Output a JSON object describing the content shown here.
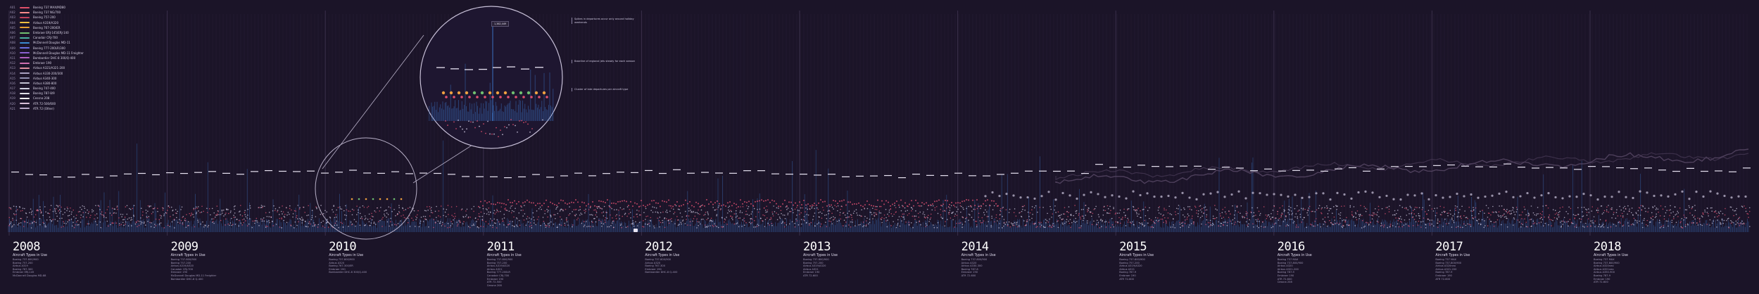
{
  "legend": [
    {
      "code": "A01",
      "label": "Boeing 737 MAX/MD80",
      "color": "#e0506a"
    },
    {
      "code": "A02",
      "label": "Boeing 737 NG/700",
      "color": "#ff8a8a"
    },
    {
      "code": "A03",
      "label": "Boeing 757-200",
      "color": "#c0405a"
    },
    {
      "code": "A04",
      "label": "Airbus A319/A320",
      "color": "#f0c040"
    },
    {
      "code": "A05",
      "label": "Boeing 767-200/ER",
      "color": "#e8a030"
    },
    {
      "code": "A06",
      "label": "Embraer ERJ-145/ERJ-140",
      "color": "#70c070"
    },
    {
      "code": "A07",
      "label": "Canadair CRJ-700",
      "color": "#4ab0a0"
    },
    {
      "code": "A08",
      "label": "McDonnell Douglas MD-11",
      "color": "#3a8ad0"
    },
    {
      "code": "A09",
      "label": "Boeing 777-200LR/300",
      "color": "#6a70e0"
    },
    {
      "code": "A10",
      "label": "McDonnell Douglas MD-11 Freighter",
      "color": "#8a60d0"
    },
    {
      "code": "A11",
      "label": "Bombardier DHC-8 300/Q-400",
      "color": "#b060c0"
    },
    {
      "code": "A12",
      "label": "Embraer 190",
      "color": "#d070b0"
    },
    {
      "code": "A13",
      "label": "Airbus A321/A321-200",
      "color": "#e090a0"
    },
    {
      "code": "A14",
      "label": "Airbus A330-200/300",
      "color": "#a8a0c0"
    },
    {
      "code": "A15",
      "label": "Airbus A340-300",
      "color": "#9090b0"
    },
    {
      "code": "A16",
      "label": "Airbus A380-800",
      "color": "#c0c0d0"
    },
    {
      "code": "A17",
      "label": "Boeing 747-400",
      "color": "#d0d0e0"
    },
    {
      "code": "A18",
      "label": "Boeing 787-8/9",
      "color": "#e0e0e8"
    },
    {
      "code": "A19",
      "label": "Cessna 208",
      "color": "#f0f0f0"
    },
    {
      "code": "A20",
      "label": "ATR 72-500/600",
      "color": "#d8c0d8"
    },
    {
      "code": "A21",
      "label": "ATR 72 (Other)",
      "color": "#b8a8c8"
    }
  ],
  "annotations": [
    "Spikes in departures occur only around holiday weekends",
    "Baseline of regional jets steady for each season",
    "Cluster of late departures per aircraft type"
  ],
  "callout_value": "1,362,449",
  "chart_data": {
    "type": "scatter",
    "title": "",
    "xlabel": "",
    "ylabel": "",
    "x_range": [
      2008,
      2019
    ],
    "years": [
      "2008",
      "2009",
      "2010",
      "2011",
      "2012",
      "2013",
      "2014",
      "2015",
      "2016",
      "2017",
      "2018"
    ],
    "year_subtitle": "Aircraft Types in Use",
    "year_items": {
      "2008": [
        "Boeing 737-800/900",
        "Boeing 757-200",
        "Airbus A319",
        "Boeing 767-300",
        "Embraer ERJ-145",
        "McDonnell Douglas MD-88"
      ],
      "2009": [
        "Boeing 737-800/900",
        "Boeing 757-200",
        "Airbus A319/A320",
        "Canadair CRJ-700",
        "Embraer 190",
        "McDonnell Douglas MD-11 Freighter",
        "Bombardier DHC-8 Q-400"
      ],
      "2010": [
        "Boeing 737-800/900",
        "Airbus A320",
        "Boeing 767-300/ER",
        "Embraer 190",
        "Bombardier DHC-8 300/Q-400"
      ],
      "2011": [
        "Boeing 737-800/900",
        "Boeing 757-200",
        "Airbus A319/A320",
        "Airbus A321",
        "Boeing 777-200LR",
        "Canadair CRJ-700",
        "Embraer 190",
        "ATR 72-500",
        "Cessna 208"
      ],
      "2012": [
        "Boeing 737-800/900",
        "Airbus A320",
        "Boeing 767-300",
        "Embraer 190",
        "Bombardier DHC-8 Q-400"
      ],
      "2013": [
        "Boeing 737-800/900",
        "Boeing 757-200",
        "Airbus A319/A320",
        "Airbus A321",
        "Embraer 190",
        "ATR 72-600"
      ],
      "2014": [
        "Boeing 737-800/900",
        "Airbus A320",
        "Airbus A330-300",
        "Boeing 787-8",
        "Embraer 190",
        "ATR 72-600"
      ],
      "2015": [
        "Boeing 737-800/900",
        "Boeing 757-200",
        "Airbus A319/A320",
        "Airbus A321",
        "Boeing 787-9",
        "Embraer 190",
        "ATR 72-600"
      ],
      "2016": [
        "Boeing 737 MAX",
        "Boeing 737-800/900",
        "Airbus A320",
        "Airbus A321-200",
        "Boeing 787-9",
        "Embraer 190",
        "ATR 72-600",
        "Cessna 208"
      ],
      "2017": [
        "Boeing 737 MAX",
        "Boeing 737-800/900",
        "Airbus A320neo",
        "Airbus A321-200",
        "Boeing 787-9",
        "Embraer 190",
        "ATR 72-600"
      ],
      "2018": [
        "Boeing 737 MAX",
        "Boeing 737-800/900",
        "Airbus A320neo",
        "Airbus A321neo",
        "Airbus A350-900",
        "Boeing 787-9",
        "Embraer 190",
        "ATR 72-600"
      ]
    },
    "series": [
      {
        "name": "Daily departures (blue spikes)",
        "color": "#3a70c0"
      },
      {
        "name": "Dash markers (weekly mean)",
        "color": "#e8e3f2"
      },
      {
        "name": "Red scatter (late departures)",
        "color": "#e05070"
      },
      {
        "name": "White scatter (on-time)",
        "color": "#cfc8e0"
      },
      {
        "name": "Dark line (trend)",
        "color": "#6a5a78"
      }
    ],
    "grid": false,
    "legend_position": "top-left"
  }
}
